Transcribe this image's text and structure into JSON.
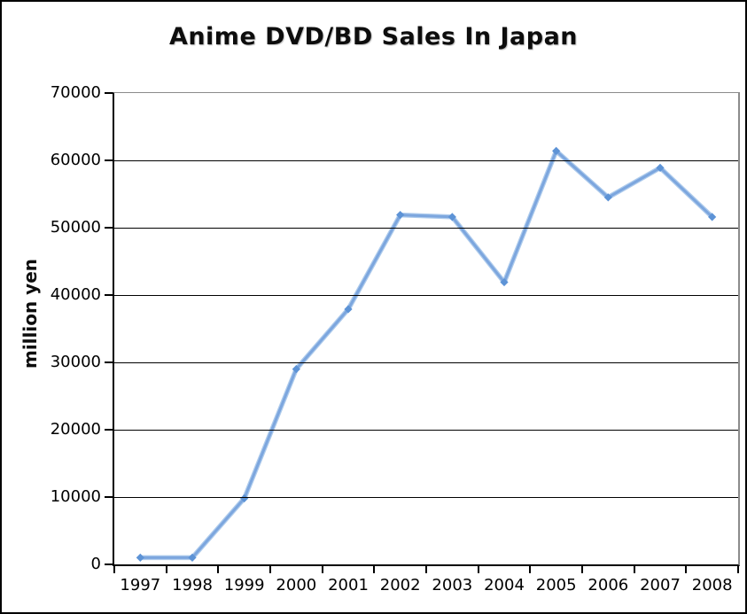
{
  "header": {
    "title": "Anime DVD/BD Sales In Japan"
  },
  "chart_data": {
    "type": "line",
    "title": "Anime DVD/BD Sales In Japan",
    "xlabel": "",
    "ylabel": "million yen",
    "categories": [
      "1997",
      "1998",
      "1999",
      "2000",
      "2001",
      "2002",
      "2003",
      "2004",
      "2005",
      "2006",
      "2007",
      "2008"
    ],
    "values": [
      1000,
      1000,
      9800,
      29000,
      37900,
      51900,
      51600,
      41900,
      61400,
      54500,
      58900,
      51600
    ],
    "ylim": [
      0,
      70000
    ],
    "y_ticks": [
      0,
      10000,
      20000,
      30000,
      40000,
      50000,
      60000,
      70000
    ],
    "grid": true,
    "legend": "none",
    "marker": "diamond",
    "colors": {
      "line": "#7CA6DE",
      "line_halo": "#AECBEC",
      "marker": "#5D93D6",
      "gridline": "#000000",
      "axis": "#000000",
      "plot_border": "#8c8c8c",
      "text": "#000000",
      "background": "#ffffff"
    }
  }
}
